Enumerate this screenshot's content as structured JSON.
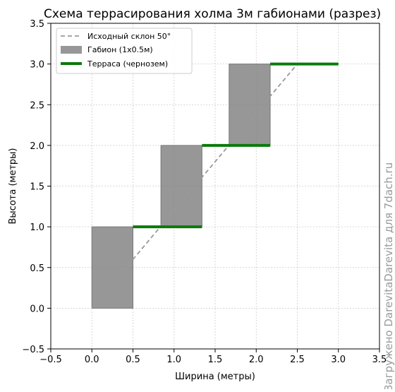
{
  "chart_data": {
    "type": "line",
    "title": "Схема террасирования холма 3м габионами (разрез)",
    "xlabel": "Ширина (метры)",
    "ylabel": "Высота (метры)",
    "xlim": [
      -0.5,
      3.5
    ],
    "ylim": [
      -0.5,
      3.5
    ],
    "xticks": [
      "−0.5",
      "0.0",
      "0.5",
      "1.0",
      "1.5",
      "2.0",
      "2.5",
      "3.0",
      "3.5"
    ],
    "yticks": [
      "−0.5",
      "0.0",
      "0.5",
      "1.0",
      "1.5",
      "2.0",
      "2.5",
      "3.0",
      "3.5"
    ],
    "grid": true,
    "legend_position": "top-left",
    "legend": {
      "slope": "Исходный склон 50°",
      "gabion": "Габион (1x0.5м)",
      "terrace": "Терраса (чернозем)"
    },
    "slope_line": {
      "x": [
        0.0,
        2.5
      ],
      "y": [
        0.0,
        3.0
      ],
      "color": "#999999",
      "style": "dashed"
    },
    "gabions": [
      {
        "x0": 0.0,
        "x1": 0.5,
        "y0": 0.0,
        "y1": 1.0
      },
      {
        "x0": 0.84,
        "x1": 1.34,
        "y0": 1.0,
        "y1": 2.0
      },
      {
        "x0": 1.67,
        "x1": 2.17,
        "y0": 2.0,
        "y1": 3.0
      }
    ],
    "gabion_color": "#808080",
    "terraces": [
      {
        "x0": 0.5,
        "x1": 1.34,
        "y": 1.0
      },
      {
        "x0": 1.34,
        "x1": 2.17,
        "y": 2.0
      },
      {
        "x0": 2.17,
        "x1": 3.0,
        "y": 3.0
      }
    ],
    "terrace_color": "#0a7a0a"
  },
  "watermark": "Загружено DarevitaDarevita для 7dach.ru"
}
